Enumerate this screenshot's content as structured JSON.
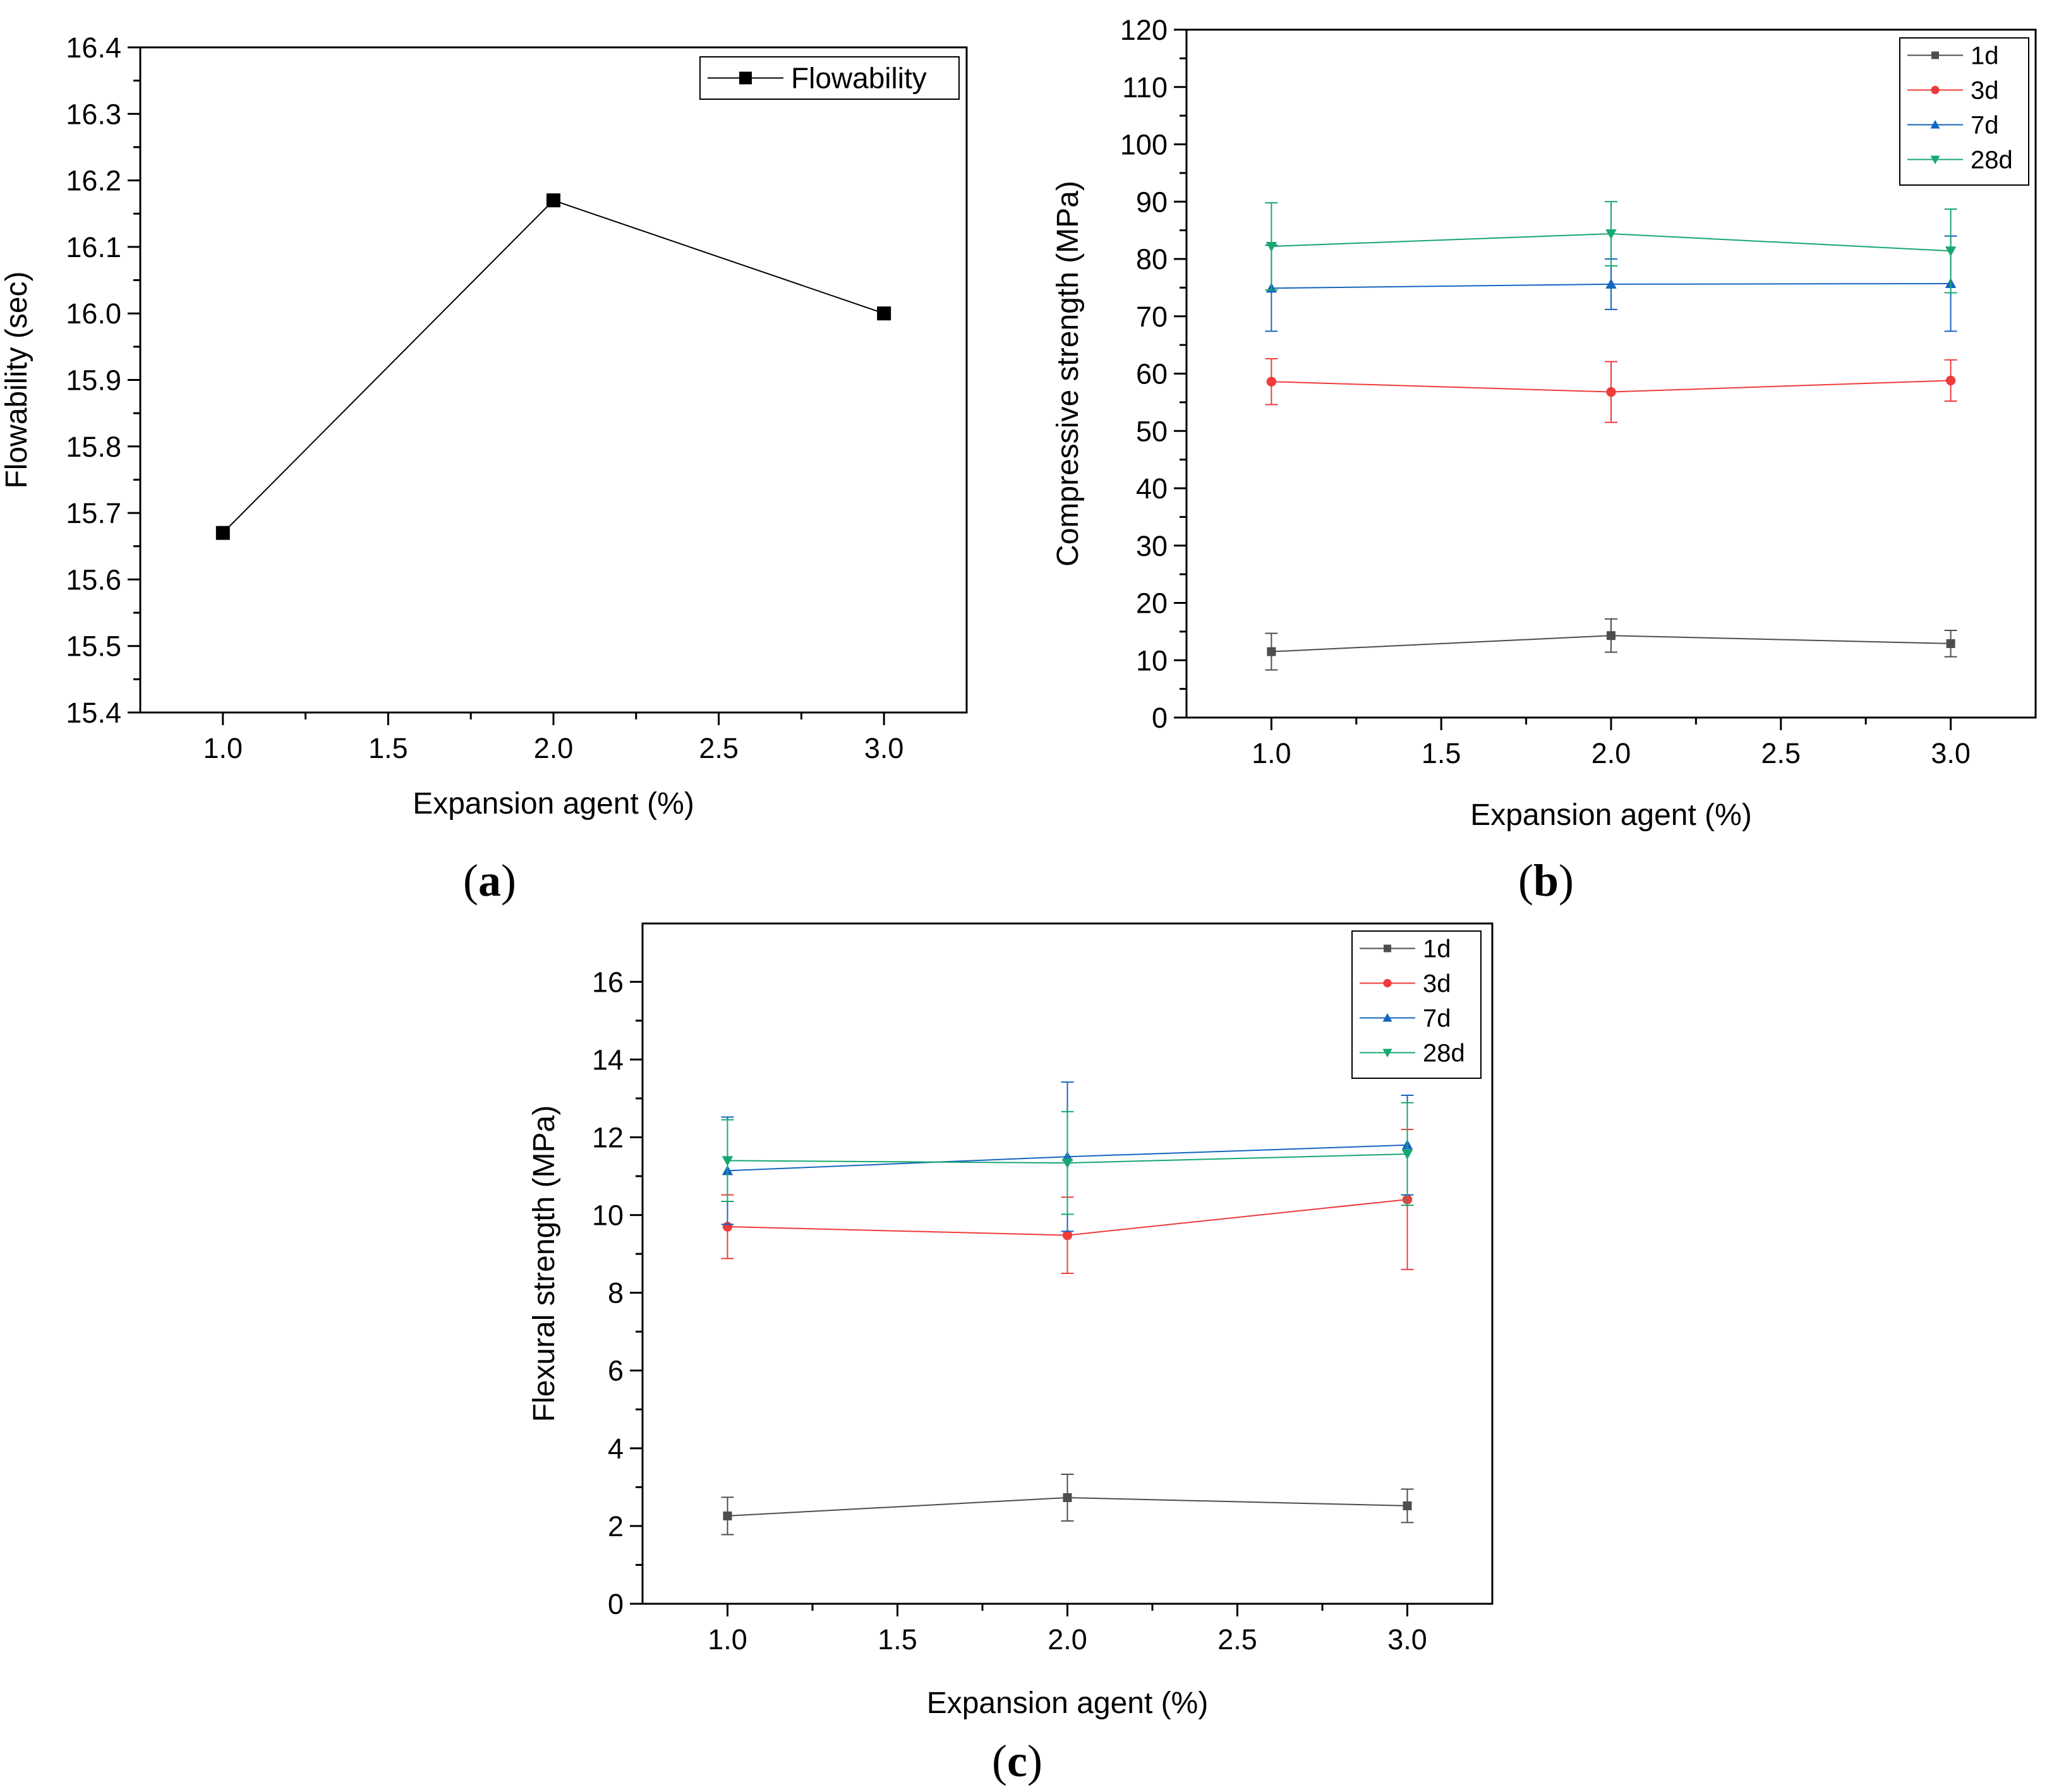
{
  "chart_data": [
    {
      "panel": "a",
      "type": "line",
      "xlabel": "Expansion agent (%)",
      "ylabel": "Flowability (sec)",
      "xlim": [
        0.75,
        3.25
      ],
      "ylim": [
        15.4,
        16.4
      ],
      "xticks": [
        1.0,
        1.5,
        2.0,
        2.5,
        3.0
      ],
      "xtick_labels": [
        "1.0",
        "1.5",
        "2.0",
        "2.5",
        "3.0"
      ],
      "yticks": [
        15.4,
        15.5,
        15.6,
        15.7,
        15.8,
        15.9,
        16.0,
        16.1,
        16.2,
        16.3,
        16.4
      ],
      "ytick_labels": [
        "15.4",
        "15.5",
        "15.6",
        "15.7",
        "15.8",
        "15.9",
        "16.0",
        "16.1",
        "16.2",
        "16.3",
        "16.4"
      ],
      "legend_position": "top-right",
      "series": [
        {
          "name": "Flowability",
          "color": "#000000",
          "marker": "square",
          "x": [
            1.0,
            2.0,
            3.0
          ],
          "values": [
            15.67,
            16.17,
            16.0
          ]
        }
      ]
    },
    {
      "panel": "b",
      "type": "line",
      "xlabel": "Expansion agent (%)",
      "ylabel": "Compressive strength (MPa)",
      "xlim": [
        0.75,
        3.25
      ],
      "ylim": [
        0,
        120
      ],
      "xticks": [
        1.0,
        1.5,
        2.0,
        2.5,
        3.0
      ],
      "xtick_labels": [
        "1.0",
        "1.5",
        "2.0",
        "2.5",
        "3.0"
      ],
      "yticks": [
        0,
        10,
        20,
        30,
        40,
        50,
        60,
        70,
        80,
        90,
        100,
        110,
        120
      ],
      "ytick_labels": [
        "0",
        "10",
        "20",
        "30",
        "40",
        "50",
        "60",
        "70",
        "80",
        "90",
        "100",
        "110",
        "120"
      ],
      "legend_position": "top-right",
      "series": [
        {
          "name": "1d",
          "color": "#4d4d4d",
          "marker": "square",
          "x": [
            1.0,
            2.0,
            3.0
          ],
          "values": [
            11.5,
            14.3,
            12.9
          ],
          "errors": [
            3.2,
            2.9,
            2.3
          ]
        },
        {
          "name": "3d",
          "color": "#ef3b3b",
          "marker": "circle",
          "x": [
            1.0,
            2.0,
            3.0
          ],
          "values": [
            58.6,
            56.8,
            58.8
          ],
          "errors": [
            4.0,
            5.3,
            3.6
          ]
        },
        {
          "name": "7d",
          "color": "#1565c0",
          "marker": "triangle-up",
          "x": [
            1.0,
            2.0,
            3.0
          ],
          "values": [
            74.9,
            75.6,
            75.7
          ],
          "errors": [
            7.5,
            4.4,
            8.3
          ]
        },
        {
          "name": "28d",
          "color": "#16a870",
          "marker": "triangle-down",
          "x": [
            1.0,
            2.0,
            3.0
          ],
          "values": [
            82.2,
            84.4,
            81.4
          ],
          "errors": [
            7.6,
            5.6,
            7.3
          ]
        }
      ]
    },
    {
      "panel": "c",
      "type": "line",
      "xlabel": "Expansion agent (%)",
      "ylabel": "Flexural strength (MPa)",
      "xlim": [
        0.75,
        3.25
      ],
      "ylim": [
        0,
        17.5
      ],
      "xticks": [
        1.0,
        1.5,
        2.0,
        2.5,
        3.0
      ],
      "xtick_labels": [
        "1.0",
        "1.5",
        "2.0",
        "2.5",
        "3.0"
      ],
      "yticks": [
        0,
        2,
        4,
        6,
        8,
        10,
        12,
        14,
        16
      ],
      "ytick_labels": [
        "0",
        "2",
        "4",
        "6",
        "8",
        "10",
        "12",
        "14",
        "16"
      ],
      "legend_position": "top-right",
      "series": [
        {
          "name": "1d",
          "color": "#4d4d4d",
          "marker": "square",
          "x": [
            1.0,
            2.0,
            3.0
          ],
          "values": [
            2.26,
            2.73,
            2.52
          ],
          "errors": [
            0.48,
            0.6,
            0.43
          ]
        },
        {
          "name": "3d",
          "color": "#ef3b3b",
          "marker": "circle",
          "x": [
            1.0,
            2.0,
            3.0
          ],
          "values": [
            9.7,
            9.48,
            10.4
          ],
          "errors": [
            0.82,
            0.98,
            1.8
          ]
        },
        {
          "name": "7d",
          "color": "#1565c0",
          "marker": "triangle-up",
          "x": [
            1.0,
            2.0,
            3.0
          ],
          "values": [
            11.14,
            11.5,
            11.8
          ],
          "errors": [
            1.38,
            1.92,
            1.28
          ]
        },
        {
          "name": "28d",
          "color": "#16a870",
          "marker": "triangle-down",
          "x": [
            1.0,
            2.0,
            3.0
          ],
          "values": [
            11.4,
            11.34,
            11.57
          ],
          "errors": [
            1.05,
            1.32,
            1.32
          ]
        }
      ]
    }
  ],
  "panel_labels": {
    "a": {
      "open": "(",
      "letter": "a",
      "close": ")"
    },
    "b": {
      "open": "(",
      "letter": "b",
      "close": ")"
    },
    "c": {
      "open": "(",
      "letter": "c",
      "close": ")"
    }
  }
}
